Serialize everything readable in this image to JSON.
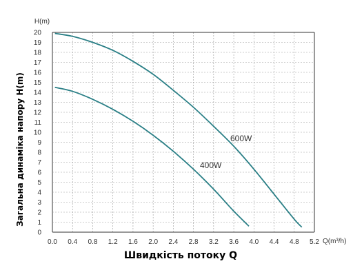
{
  "chart_data": {
    "type": "line",
    "y_unit_label": "H(m)",
    "x_unit_label": "Q(m³/h)",
    "xlabel": "Швидкість потоку Q",
    "ylabel": "Загальна динаміка напору H(m)",
    "xlim": [
      0,
      5.2
    ],
    "ylim": [
      0,
      20
    ],
    "x_ticks": [
      "0.0",
      "0.4",
      "0.8",
      "1.2",
      "1.6",
      "2.0",
      "2.4",
      "2.8",
      "3.2",
      "3.6",
      "4.0",
      "4.4",
      "4.8",
      "5.2"
    ],
    "y_ticks": [
      "0",
      "1",
      "2",
      "3",
      "4",
      "5",
      "6",
      "7",
      "8",
      "9",
      "10",
      "11",
      "12",
      "13",
      "14",
      "15",
      "16",
      "17",
      "18",
      "19",
      "20"
    ],
    "grid": true,
    "series": [
      {
        "name": "600W",
        "color": "#2a7f86",
        "x": [
          0.05,
          0.4,
          0.8,
          1.2,
          1.6,
          2.0,
          2.4,
          2.8,
          3.2,
          3.6,
          4.0,
          4.4,
          4.8,
          4.95
        ],
        "y": [
          19.9,
          19.6,
          19.0,
          18.2,
          17.1,
          15.8,
          14.2,
          12.5,
          10.6,
          8.6,
          6.3,
          3.8,
          1.3,
          0.5
        ]
      },
      {
        "name": "400W",
        "color": "#2a7f86",
        "x": [
          0.05,
          0.4,
          0.8,
          1.2,
          1.6,
          2.0,
          2.4,
          2.8,
          3.2,
          3.6,
          3.9
        ],
        "y": [
          14.5,
          14.1,
          13.3,
          12.3,
          11.1,
          9.7,
          8.1,
          6.3,
          4.3,
          2.1,
          0.6
        ]
      }
    ],
    "series_label_positions": [
      "upper-right of curve",
      "middle-right of curve"
    ]
  }
}
